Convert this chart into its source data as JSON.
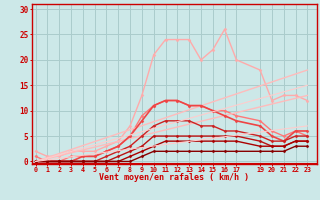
{
  "background_color": "#cce8e8",
  "grid_color": "#aacccc",
  "xlabel": "Vent moyen/en rafales ( km/h )",
  "xlabel_color": "#cc0000",
  "tick_color": "#cc0000",
  "xticks": [
    0,
    1,
    2,
    3,
    4,
    5,
    6,
    7,
    8,
    9,
    10,
    11,
    12,
    13,
    14,
    15,
    16,
    17,
    19,
    20,
    21,
    22,
    23
  ],
  "yticks": [
    0,
    5,
    10,
    15,
    20,
    25,
    30
  ],
  "xlim": [
    -0.3,
    23.8
  ],
  "ylim": [
    -0.5,
    31
  ],
  "lines": [
    {
      "x": [
        0,
        1,
        2,
        3,
        4,
        5,
        6,
        7,
        8,
        9,
        10,
        11,
        12,
        13,
        14,
        15,
        16,
        17,
        19,
        20,
        21,
        22,
        23
      ],
      "y": [
        2,
        1,
        1,
        2,
        2,
        2,
        3,
        4,
        7,
        13,
        21,
        24,
        24,
        24,
        20,
        22,
        26,
        20,
        18,
        12,
        13,
        13,
        12
      ],
      "color": "#ffaaaa",
      "lw": 1.0,
      "marker": "D",
      "ms": 1.5
    },
    {
      "x": [
        0,
        1,
        2,
        3,
        4,
        5,
        6,
        7,
        8,
        9,
        10,
        11,
        12,
        13,
        14,
        15,
        16,
        17,
        19,
        20,
        21,
        22,
        23
      ],
      "y": [
        1,
        0,
        0,
        1,
        1,
        1,
        2,
        3,
        5,
        9,
        11,
        12,
        12,
        11,
        11,
        10,
        10,
        9,
        8,
        6,
        5,
        6,
        5
      ],
      "color": "#ff7777",
      "lw": 1.0,
      "marker": "D",
      "ms": 1.5
    },
    {
      "x": [
        0,
        23
      ],
      "y": [
        0,
        18
      ],
      "color": "#ffbbbb",
      "lw": 1.0,
      "marker": null,
      "ms": 0
    },
    {
      "x": [
        0,
        23
      ],
      "y": [
        0,
        13
      ],
      "color": "#ffbbbb",
      "lw": 1.0,
      "marker": null,
      "ms": 0
    },
    {
      "x": [
        0,
        1,
        2,
        3,
        4,
        5,
        6,
        7,
        8,
        9,
        10,
        11,
        12,
        13,
        14,
        15,
        16,
        17,
        19,
        20,
        21,
        22,
        23
      ],
      "y": [
        0,
        0,
        0,
        0,
        1,
        1,
        2,
        3,
        5,
        8,
        11,
        12,
        12,
        11,
        11,
        10,
        9,
        8,
        7,
        5,
        4,
        6,
        6
      ],
      "color": "#ee4444",
      "lw": 1.2,
      "marker": "D",
      "ms": 1.5
    },
    {
      "x": [
        0,
        1,
        2,
        3,
        4,
        5,
        6,
        7,
        8,
        9,
        10,
        11,
        12,
        13,
        14,
        15,
        16,
        17,
        19,
        20,
        21,
        22,
        23
      ],
      "y": [
        0,
        0,
        0,
        0,
        0,
        0,
        1,
        2,
        3,
        5,
        7,
        8,
        8,
        8,
        7,
        7,
        6,
        6,
        5,
        4,
        4,
        5,
        5
      ],
      "color": "#cc2222",
      "lw": 1.0,
      "marker": "D",
      "ms": 1.5
    },
    {
      "x": [
        0,
        1,
        2,
        3,
        4,
        5,
        6,
        7,
        8,
        9,
        10,
        11,
        12,
        13,
        14,
        15,
        16,
        17,
        19,
        20,
        21,
        22,
        23
      ],
      "y": [
        0,
        0,
        0,
        0,
        0,
        0,
        0,
        1,
        2,
        3,
        5,
        5,
        5,
        5,
        5,
        5,
        5,
        5,
        4,
        3,
        3,
        4,
        4
      ],
      "color": "#bb1111",
      "lw": 1.0,
      "marker": "D",
      "ms": 1.5
    },
    {
      "x": [
        0,
        1,
        2,
        3,
        4,
        5,
        6,
        7,
        8,
        9,
        10,
        11,
        12,
        13,
        14,
        15,
        16,
        17,
        19,
        20,
        21,
        22,
        23
      ],
      "y": [
        0,
        0,
        0,
        0,
        0,
        0,
        0,
        0,
        1,
        2,
        3,
        4,
        4,
        4,
        4,
        4,
        4,
        4,
        3,
        3,
        3,
        4,
        4
      ],
      "color": "#aa0000",
      "lw": 1.0,
      "marker": "D",
      "ms": 1.5
    },
    {
      "x": [
        0,
        1,
        2,
        3,
        4,
        5,
        6,
        7,
        8,
        9,
        10,
        11,
        12,
        13,
        14,
        15,
        16,
        17,
        19,
        20,
        21,
        22,
        23
      ],
      "y": [
        0,
        0,
        0,
        0,
        0,
        0,
        0,
        0,
        0,
        1,
        2,
        2,
        2,
        2,
        2,
        2,
        2,
        2,
        2,
        2,
        2,
        3,
        3
      ],
      "color": "#880000",
      "lw": 1.0,
      "marker": "D",
      "ms": 1.5
    },
    {
      "x": [
        0,
        23
      ],
      "y": [
        0,
        15
      ],
      "color": "#ffcccc",
      "lw": 0.8,
      "marker": null,
      "ms": 0
    },
    {
      "x": [
        0,
        23
      ],
      "y": [
        0,
        7
      ],
      "color": "#ffcccc",
      "lw": 0.8,
      "marker": null,
      "ms": 0
    }
  ],
  "bottom_line_y": -0.3
}
